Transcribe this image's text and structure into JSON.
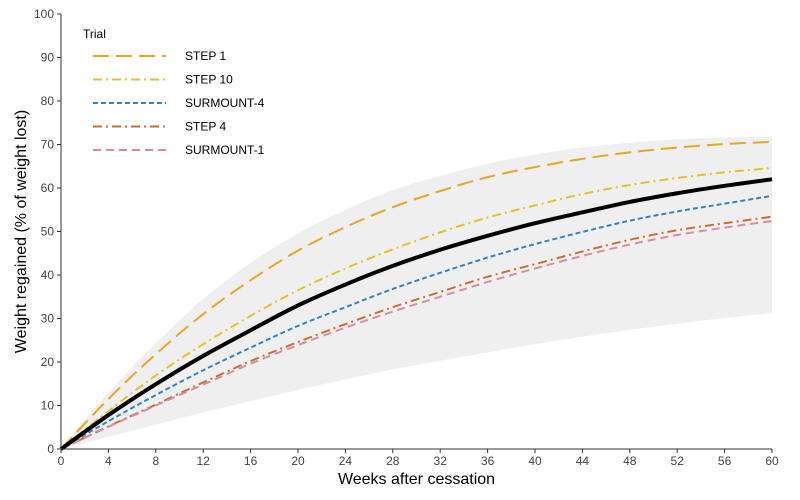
{
  "chart_data": {
    "type": "line",
    "xlabel": "Weeks after cessation",
    "ylabel": "Weight regained (% of weight lost)",
    "xlim": [
      0,
      60
    ],
    "ylim": [
      0,
      100
    ],
    "x_ticks": [
      0,
      4,
      8,
      12,
      16,
      20,
      24,
      28,
      32,
      36,
      40,
      44,
      48,
      52,
      56,
      60
    ],
    "y_ticks": [
      0,
      10,
      20,
      30,
      40,
      50,
      60,
      70,
      80,
      90,
      100
    ],
    "grid": false,
    "legend": {
      "title": "Trial",
      "position": "top-left"
    },
    "x": [
      0,
      4,
      8,
      12,
      16,
      20,
      24,
      28,
      32,
      36,
      40,
      44,
      48,
      52,
      56,
      60
    ],
    "series": [
      {
        "name": "STEP 1",
        "color": "#E8A623",
        "dash": "long-dash",
        "values": [
          0,
          11.5,
          21.8,
          31.0,
          38.8,
          45.6,
          51.0,
          55.6,
          59.3,
          62.5,
          64.8,
          66.7,
          68.2,
          69.3,
          70.1,
          70.6
        ]
      },
      {
        "name": "STEP 10",
        "color": "#E6C02C",
        "dash": "dash-dot",
        "values": [
          0,
          8.7,
          16.9,
          24.1,
          30.6,
          36.5,
          41.5,
          45.9,
          49.8,
          53.2,
          56.0,
          58.6,
          60.7,
          62.3,
          63.6,
          64.6
        ]
      },
      {
        "name": "SURMOUNT-4",
        "color": "#2E86C1",
        "dash": "short-dash",
        "values": [
          0,
          6.4,
          12.4,
          18.1,
          23.3,
          28.3,
          32.6,
          36.8,
          40.5,
          44.0,
          47.1,
          49.9,
          52.5,
          54.6,
          56.4,
          58.2
        ]
      },
      {
        "name": "STEP 4",
        "color": "#C8702F",
        "dash": "dash-dot",
        "values": [
          0,
          5.2,
          10.2,
          15.3,
          20.2,
          24.6,
          28.7,
          32.6,
          36.1,
          39.6,
          42.5,
          45.4,
          48.1,
          50.3,
          51.9,
          53.4
        ]
      },
      {
        "name": "SURMOUNT-1",
        "color": "#D98BA6",
        "dash": "dash",
        "values": [
          0,
          5.1,
          10.0,
          14.8,
          19.6,
          23.9,
          27.9,
          31.6,
          35.0,
          38.4,
          41.5,
          44.4,
          47.0,
          49.2,
          50.9,
          52.4
        ]
      }
    ],
    "pooled": {
      "color": "#000000",
      "values": [
        0,
        7.8,
        14.9,
        21.4,
        27.3,
        33.0,
        37.8,
        42.1,
        45.8,
        49.0,
        51.9,
        54.4,
        56.8,
        58.8,
        60.5,
        62.0
      ]
    },
    "confidence_band": {
      "color": "#EFEFEF",
      "lower": [
        0,
        2.8,
        5.6,
        8.4,
        11.0,
        13.6,
        16.0,
        18.3,
        20.3,
        22.2,
        24.1,
        25.8,
        27.4,
        28.8,
        30.1,
        31.3
      ],
      "upper": [
        0,
        13.0,
        24.3,
        34.5,
        42.8,
        49.5,
        55.0,
        59.5,
        62.8,
        65.6,
        67.7,
        69.3,
        70.4,
        71.2,
        71.6,
        71.8
      ]
    }
  }
}
